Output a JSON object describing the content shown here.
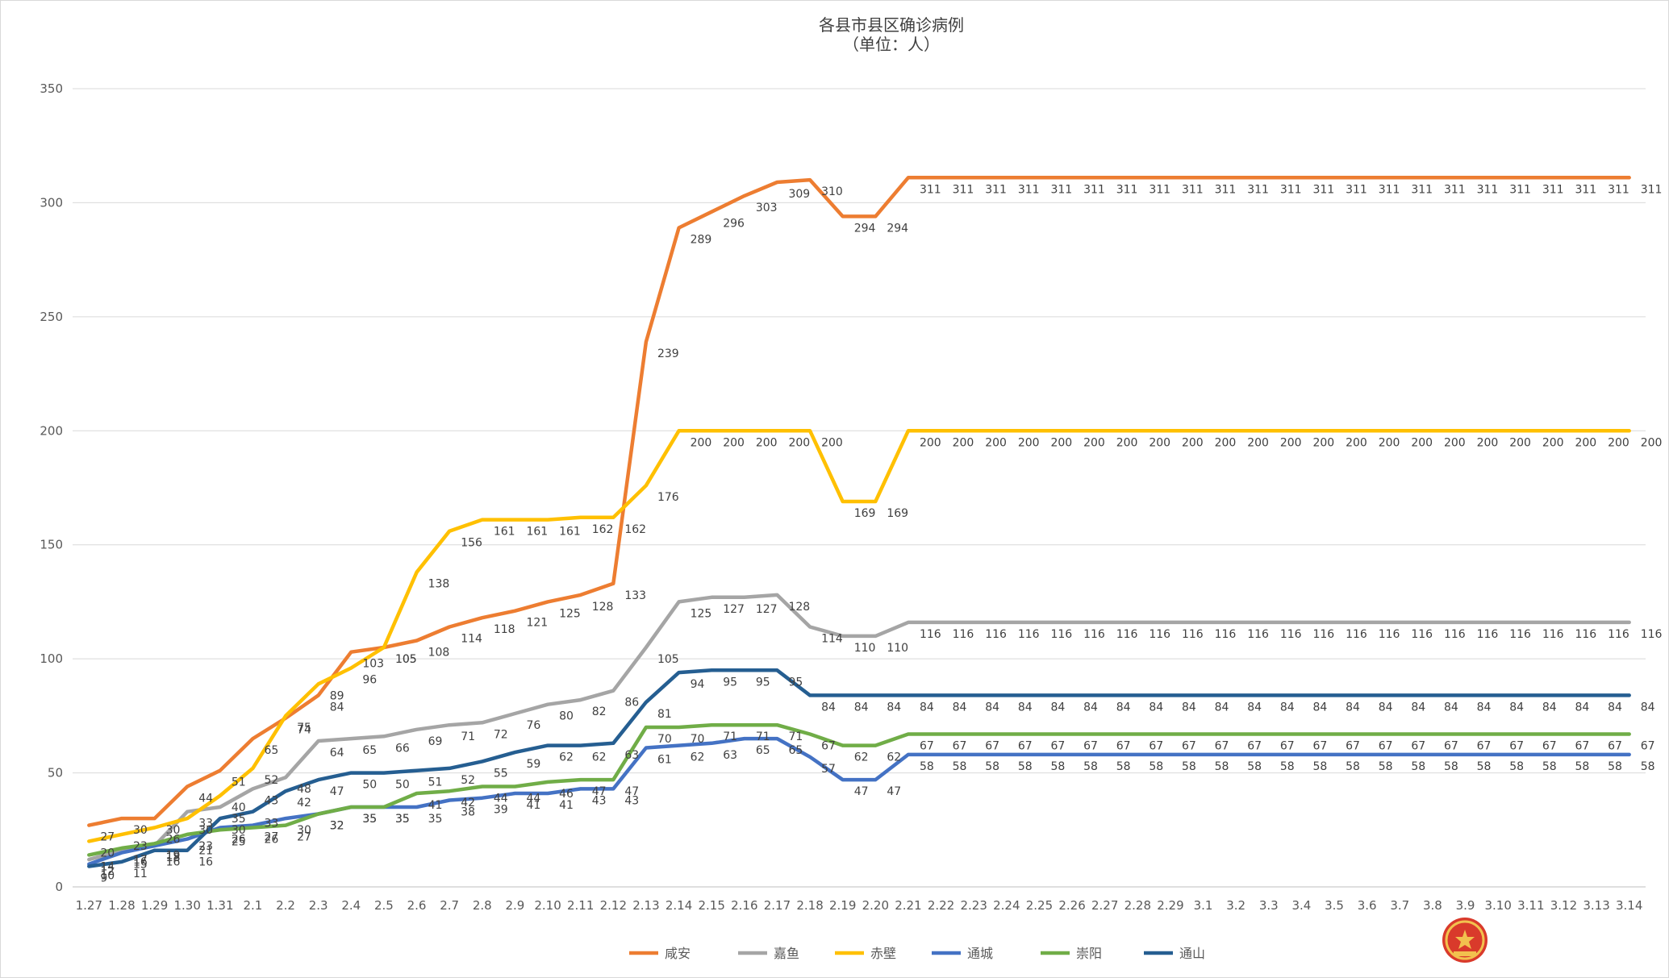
{
  "chart_data": {
    "type": "line",
    "title": "各县市县区确诊病例",
    "subtitle": "（单位：人）",
    "xlabel": "",
    "ylabel": "",
    "ylim": [
      0,
      350
    ],
    "yticks": [
      "0",
      "50",
      "100",
      "150",
      "200",
      "250",
      "300",
      "350"
    ],
    "grid": true,
    "legend_position": "bottom",
    "x": [
      "1.27",
      "1.28",
      "1.29",
      "1.30",
      "1.31",
      "2.1",
      "2.2",
      "2.3",
      "2.4",
      "2.5",
      "2.6",
      "2.7",
      "2.8",
      "2.9",
      "2.10",
      "2.11",
      "2.12",
      "2.13",
      "2.14",
      "2.15",
      "2.16",
      "2.17",
      "2.18",
      "2.19",
      "2.20",
      "2.21",
      "2.22",
      "2.23",
      "2.24",
      "2.25",
      "2.26",
      "2.27",
      "2.28",
      "2.29",
      "3.1",
      "3.2",
      "3.3",
      "3.4",
      "3.5",
      "3.6",
      "3.7",
      "3.8",
      "3.9",
      "3.10",
      "3.11",
      "3.12",
      "3.13",
      "3.14"
    ],
    "series": [
      {
        "name": "咸安",
        "color": "#ED7D31",
        "values": [
          27,
          30,
          30,
          44,
          51,
          65,
          74,
          84,
          103,
          105,
          108,
          114,
          118,
          121,
          125,
          128,
          133,
          239,
          289,
          296,
          303,
          309,
          310,
          294,
          294,
          311,
          311,
          311,
          311,
          311,
          311,
          311,
          311,
          311,
          311,
          311,
          311,
          311,
          311,
          311,
          311,
          311,
          311,
          311,
          311,
          311,
          311,
          311
        ]
      },
      {
        "name": "嘉鱼",
        "color": "#A5A5A5",
        "values": [
          12,
          16,
          18,
          33,
          35,
          43,
          48,
          64,
          65,
          66,
          69,
          71,
          72,
          76,
          80,
          82,
          86,
          105,
          125,
          127,
          127,
          128,
          114,
          110,
          110,
          116,
          116,
          116,
          116,
          116,
          116,
          116,
          116,
          116,
          116,
          116,
          116,
          116,
          116,
          116,
          116,
          116,
          116,
          116,
          116,
          116,
          116,
          116
        ]
      },
      {
        "name": "赤壁",
        "color": "#FFC000",
        "values": [
          20,
          23,
          26,
          30,
          40,
          52,
          75,
          89,
          96,
          105,
          138,
          156,
          161,
          161,
          161,
          162,
          162,
          176,
          200,
          200,
          200,
          200,
          200,
          169,
          169,
          200,
          200,
          200,
          200,
          200,
          200,
          200,
          200,
          200,
          200,
          200,
          200,
          200,
          200,
          200,
          200,
          200,
          200,
          200,
          200,
          200,
          200,
          200
        ]
      },
      {
        "name": "通城",
        "color": "#4472C4",
        "values": [
          10,
          15,
          18,
          21,
          26,
          27,
          30,
          32,
          35,
          35,
          35,
          38,
          39,
          41,
          41,
          43,
          43,
          61,
          62,
          63,
          65,
          65,
          57,
          47,
          47,
          58,
          58,
          58,
          58,
          58,
          58,
          58,
          58,
          58,
          58,
          58,
          58,
          58,
          58,
          58,
          58,
          58,
          58,
          58,
          58,
          58,
          58,
          58
        ]
      },
      {
        "name": "崇阳",
        "color": "#70AD47",
        "values": [
          14,
          17,
          19,
          23,
          25,
          26,
          27,
          32,
          35,
          35,
          41,
          42,
          44,
          44,
          46,
          47,
          47,
          70,
          70,
          71,
          71,
          71,
          67,
          62,
          62,
          67,
          67,
          67,
          67,
          67,
          67,
          67,
          67,
          67,
          67,
          67,
          67,
          67,
          67,
          67,
          67,
          67,
          67,
          67,
          67,
          67,
          67,
          67
        ]
      },
      {
        "name": "通山",
        "color": "#255E91",
        "values": [
          9,
          11,
          16,
          16,
          30,
          33,
          42,
          47,
          50,
          50,
          51,
          52,
          55,
          59,
          62,
          62,
          63,
          81,
          94,
          95,
          95,
          95,
          84,
          84,
          84,
          84,
          84,
          84,
          84,
          84,
          84,
          84,
          84,
          84,
          84,
          84,
          84,
          84,
          84,
          84,
          84,
          84,
          84,
          84,
          84,
          84,
          84,
          84
        ]
      }
    ]
  },
  "emblem": {
    "icon": "national-emblem-icon"
  }
}
